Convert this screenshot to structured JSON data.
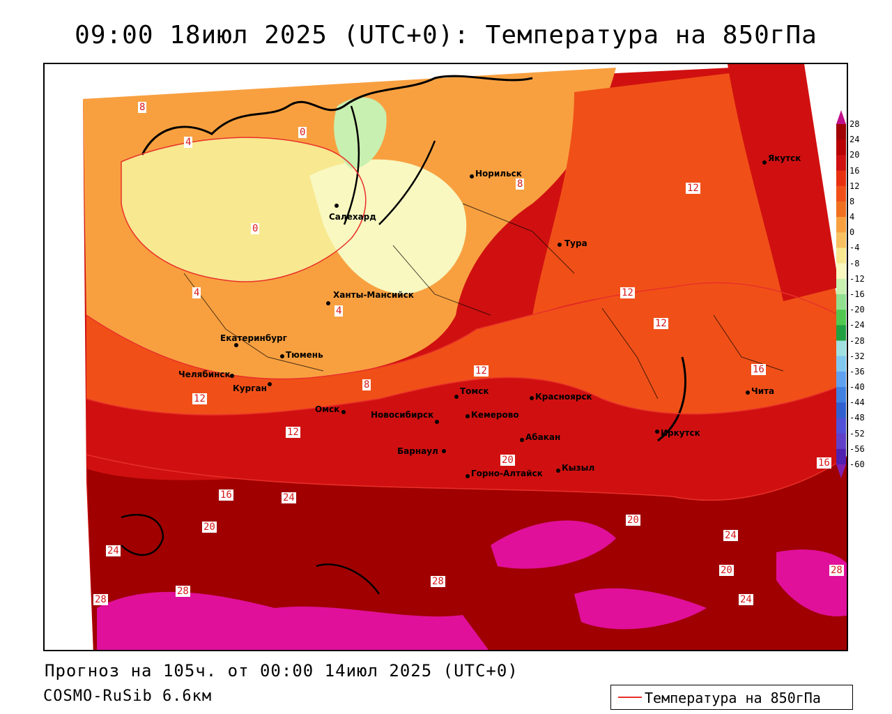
{
  "title": "09:00 18июл 2025 (UTC+0): Температура на 850гПа",
  "footer": {
    "forecast": "Прогноз на 105ч. от 00:00 14июл 2025 (UTC+0)",
    "model": "COSMO-RuSib 6.6км"
  },
  "legend": {
    "label": "Температура на 850гПа",
    "line_color": "#e8302a"
  },
  "colorbar": {
    "ticks": [
      "28",
      "24",
      "20",
      "16",
      "12",
      "8",
      "4",
      "0",
      "-4",
      "-8",
      "-12",
      "-16",
      "-20",
      "-24",
      "-28",
      "-32",
      "-36",
      "-40",
      "-44",
      "-48",
      "-52",
      "-56",
      "-60"
    ],
    "colors": [
      "#a00000",
      "#b80000",
      "#d01010",
      "#e83010",
      "#f05018",
      "#f07020",
      "#f8a040",
      "#f8c060",
      "#f8e890",
      "#f8f8c0",
      "#c8f0b0",
      "#90e090",
      "#50c850",
      "#20a040",
      "#a0e0e0",
      "#80c8f0",
      "#60a0f0",
      "#4080e0",
      "#3060d0",
      "#5050d8",
      "#6040c8",
      "#5020b0",
      "#3010a0",
      "#200090"
    ]
  },
  "cities": [
    {
      "name": "Якутск"
    },
    {
      "name": "Норильск"
    },
    {
      "name": "Салехард"
    },
    {
      "name": "Тура"
    },
    {
      "name": "Ханты-Мансийск"
    },
    {
      "name": "Екатеринбург"
    },
    {
      "name": "Тюмень"
    },
    {
      "name": "Челябинск"
    },
    {
      "name": "Курган"
    },
    {
      "name": "Омск"
    },
    {
      "name": "Новосибирск"
    },
    {
      "name": "Томск"
    },
    {
      "name": "Кемерово"
    },
    {
      "name": "Красноярск"
    },
    {
      "name": "Абакан"
    },
    {
      "name": "Барнаул"
    },
    {
      "name": "Горно-Алтайск"
    },
    {
      "name": "Кызыл"
    },
    {
      "name": "Иркутск"
    },
    {
      "name": "Чита"
    }
  ],
  "contour_labels": [
    "8",
    "4",
    "0",
    "4",
    "0",
    "4",
    "8",
    "8",
    "12",
    "12",
    "12",
    "12",
    "12",
    "12",
    "16",
    "16",
    "20",
    "20",
    "24",
    "24",
    "28",
    "28",
    "28",
    "20",
    "24",
    "16",
    "20",
    "24",
    "28"
  ]
}
